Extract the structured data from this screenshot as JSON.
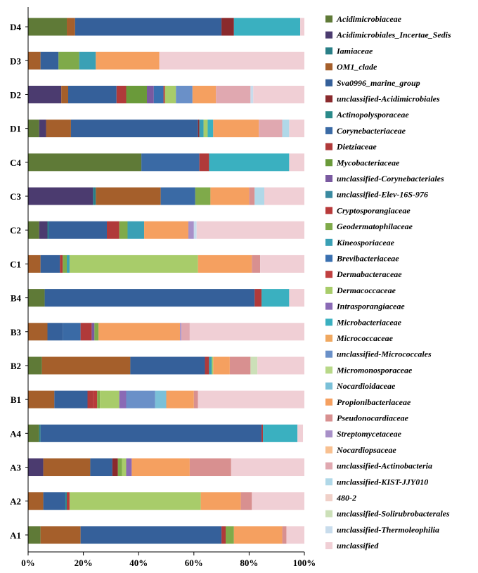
{
  "chart_data": {
    "type": "bar",
    "orientation": "horizontal",
    "stacked": true,
    "percent": true,
    "title": "",
    "xlabel": "",
    "ylabel": "",
    "xlim": [
      0,
      100
    ],
    "xticks": [
      "0%",
      "20%",
      "40%",
      "60%",
      "80%",
      "100%"
    ],
    "legend_position": "right",
    "categories": [
      "D4",
      "D3",
      "D2",
      "D1",
      "C4",
      "C3",
      "C2",
      "C1",
      "B4",
      "B3",
      "B2",
      "B1",
      "A4",
      "A3",
      "A2",
      "A1"
    ],
    "series": [
      {
        "name": "Acidimicrobiaceae",
        "color": "#5f7a37",
        "values": [
          14.0,
          0,
          0,
          4.0,
          41.0,
          0,
          4.0,
          0,
          6.0,
          0,
          5.0,
          0,
          4.0,
          0,
          0,
          4.5
        ]
      },
      {
        "name": "Acidimicrobiales_Incertae_Sedis",
        "color": "#4b3b6f",
        "values": [
          0,
          0,
          12.0,
          2.5,
          0,
          23.5,
          3.0,
          0,
          0,
          0,
          0,
          0,
          0,
          5.5,
          0,
          0
        ]
      },
      {
        "name": "Iamiaceae",
        "color": "#2a7f87",
        "values": [
          0,
          0,
          0,
          0,
          0,
          1.0,
          0.5,
          0,
          0,
          0,
          0,
          0,
          0.5,
          0,
          0,
          0
        ]
      },
      {
        "name": "OM1_clade",
        "color": "#a55f2b",
        "values": [
          3.0,
          4.5,
          2.5,
          9.0,
          0,
          23.5,
          0,
          4.5,
          0,
          7.0,
          32.0,
          9.5,
          0,
          17.0,
          5.5,
          14.5
        ]
      },
      {
        "name": "Sva0996_marine_group",
        "color": "#35609a",
        "values": [
          53.0,
          6.5,
          17.5,
          46.0,
          0,
          0,
          21.0,
          7.0,
          76.0,
          5.5,
          27.0,
          12.0,
          80.0,
          8.0,
          8.0,
          51.0
        ]
      },
      {
        "name": "unclassified-Acidimicrobiales",
        "color": "#8a2a2d",
        "values": [
          4.5,
          0,
          0,
          0.5,
          0,
          0,
          0,
          0,
          0,
          0,
          0,
          0,
          0,
          2.0,
          0,
          0
        ]
      },
      {
        "name": "Actinopolysporaceae",
        "color": "#2a8a8a",
        "values": [
          0,
          0,
          0,
          0,
          0,
          0,
          0,
          0,
          0,
          0,
          0,
          0,
          0,
          0,
          0.5,
          0
        ]
      },
      {
        "name": "Corynebacteriaceae",
        "color": "#3a6aa5",
        "values": [
          0,
          0,
          0,
          0,
          21.0,
          12.5,
          0,
          0,
          0,
          6.5,
          0,
          0,
          0,
          0,
          0,
          0
        ]
      },
      {
        "name": "Dietziaceae",
        "color": "#b03a3a",
        "values": [
          0,
          0,
          3.5,
          0,
          3.5,
          0,
          4.5,
          1.0,
          2.5,
          4.0,
          1.5,
          2.0,
          0.5,
          0,
          0.5,
          1.5
        ]
      },
      {
        "name": "Mycobacteriaceae",
        "color": "#6a9a3a",
        "values": [
          0,
          0,
          7.5,
          0,
          0,
          0,
          0,
          0,
          0,
          0,
          0,
          0,
          0,
          0,
          0,
          0
        ]
      },
      {
        "name": "unclassified-Corynebacteriales",
        "color": "#7a5aa0",
        "values": [
          0,
          0,
          2.5,
          0,
          0,
          0,
          0,
          0,
          0,
          1.0,
          0,
          0,
          0,
          0,
          0,
          0
        ]
      },
      {
        "name": "unclassified-Elev-16S-976",
        "color": "#3a8aa0",
        "values": [
          0,
          0,
          0,
          0,
          0,
          0,
          0,
          0,
          0,
          0,
          0,
          0,
          0,
          0,
          0,
          0
        ]
      },
      {
        "name": "Cryptosporangiaceae",
        "color": "#b83a3a",
        "values": [
          0,
          0,
          0,
          0,
          0,
          0,
          0,
          0,
          0,
          0,
          0,
          1.5,
          0,
          0,
          0.5,
          0
        ]
      },
      {
        "name": "Geodermatophilaceae",
        "color": "#7faa4a",
        "values": [
          0,
          7.5,
          0,
          0,
          0,
          5.5,
          3.0,
          1.5,
          0,
          1.5,
          0,
          1.0,
          0,
          1.5,
          0,
          3.0
        ]
      },
      {
        "name": "Kineosporiaceae",
        "color": "#3aa0b5",
        "values": [
          0,
          6.0,
          0,
          1.5,
          0,
          0,
          6.0,
          1.0,
          0,
          0,
          1.0,
          0,
          0,
          0,
          0,
          0
        ]
      },
      {
        "name": "Brevibacteriaceae",
        "color": "#3a70b0",
        "values": [
          0,
          0,
          3.5,
          0,
          0,
          0,
          0,
          0,
          0,
          0,
          0,
          0,
          0,
          0,
          0,
          0
        ]
      },
      {
        "name": "Dermabacteraceae",
        "color": "#c04040",
        "values": [
          0,
          0,
          0.5,
          0,
          0,
          0,
          0,
          0,
          0,
          0,
          0,
          0,
          0,
          0,
          0,
          0
        ]
      },
      {
        "name": "Dermacoccaceae",
        "color": "#a8cc6a",
        "values": [
          0,
          0,
          4.0,
          1.5,
          0,
          0,
          0,
          46.5,
          0,
          0,
          0.5,
          7.0,
          0,
          1.5,
          47.5,
          0
        ]
      },
      {
        "name": "Intrasporangiaceae",
        "color": "#8a6ab5",
        "values": [
          0,
          0,
          0,
          0,
          0,
          0,
          0,
          0,
          0,
          0,
          0,
          2.5,
          0,
          2.0,
          0,
          0
        ]
      },
      {
        "name": "Microbacteriaceae",
        "color": "#3ab0c0",
        "values": [
          24.0,
          0,
          0,
          2.0,
          29.0,
          0,
          0,
          0,
          10.0,
          0,
          0,
          0,
          12.5,
          0,
          0,
          0
        ]
      },
      {
        "name": "Micrococcaceae",
        "color": "#f0a860",
        "values": [
          0,
          0,
          0,
          0,
          0,
          0,
          0,
          0,
          0,
          0,
          0,
          0,
          0,
          0,
          0,
          0
        ]
      },
      {
        "name": "unclassified-Micrococcales",
        "color": "#6a90c8",
        "values": [
          0,
          0,
          6.0,
          0,
          0,
          0,
          0,
          0,
          0,
          0,
          0,
          10.5,
          0,
          0,
          0,
          0
        ]
      },
      {
        "name": "Micromonosporaceae",
        "color": "#b8d888",
        "values": [
          0,
          0,
          0,
          0,
          0,
          0,
          0,
          0,
          0,
          0,
          0,
          0,
          0,
          0,
          0,
          0
        ]
      },
      {
        "name": "Nocardioidaceae",
        "color": "#7ac0d8",
        "values": [
          0,
          0,
          0,
          0,
          0,
          0,
          0,
          0,
          0,
          0,
          0,
          4.0,
          0,
          0,
          0,
          0
        ]
      },
      {
        "name": "Propionibacteriaceae",
        "color": "#f5a060",
        "values": [
          0,
          23.0,
          8.5,
          16.5,
          0,
          14.0,
          16.0,
          19.5,
          0,
          29.5,
          6.0,
          10.0,
          0,
          21.0,
          14.5,
          17.5
        ]
      },
      {
        "name": "Pseudonocardiaceae",
        "color": "#d89090",
        "values": [
          0,
          0,
          0,
          0,
          0,
          2.0,
          0,
          3.0,
          0,
          0,
          7.5,
          1.5,
          0,
          15.0,
          4.0,
          1.5
        ]
      },
      {
        "name": "Streptomycetaceae",
        "color": "#a890c8",
        "values": [
          0,
          0,
          0,
          0,
          0,
          0,
          2.0,
          0,
          0,
          0.5,
          0,
          0,
          0,
          0,
          0,
          0
        ]
      },
      {
        "name": "Nocardiopsaceae",
        "color": "#f8c090",
        "values": [
          0,
          0,
          0,
          0,
          0,
          0,
          0,
          0,
          0,
          0,
          0,
          0,
          0,
          0,
          0,
          0
        ]
      },
      {
        "name": "unclassified-Actinobacteria",
        "color": "#e0a8b0",
        "values": [
          0,
          0,
          12.5,
          8.5,
          0,
          0,
          0,
          0,
          0,
          3.0,
          0,
          0,
          0,
          0,
          0,
          0
        ]
      },
      {
        "name": "unclassified-KIST-JJY010",
        "color": "#b0d8e8",
        "values": [
          0,
          0,
          0,
          2.5,
          0,
          3.5,
          0,
          0,
          0,
          0,
          0,
          0,
          0,
          0,
          0,
          0
        ]
      },
      {
        "name": "480-2",
        "color": "#f0d0c8",
        "values": [
          0,
          0,
          0,
          0,
          0,
          0,
          0,
          0,
          0,
          0,
          0,
          0,
          0,
          0,
          0,
          0
        ]
      },
      {
        "name": "unclassified-Solirubrobacterales",
        "color": "#cce0b8",
        "values": [
          0,
          0,
          0,
          0,
          0,
          0,
          0,
          0,
          0,
          0,
          2.5,
          0,
          0,
          0,
          0,
          0
        ]
      },
      {
        "name": "unclassified-Thermoleophilia",
        "color": "#c8dcec",
        "values": [
          0,
          0,
          1.0,
          0,
          0,
          0,
          1.0,
          0,
          0,
          0,
          0,
          0,
          0,
          0,
          0,
          0
        ]
      },
      {
        "name": "unclassified",
        "color": "#f0cfd5",
        "values": [
          1.5,
          52.5,
          21.0,
          5.5,
          5.5,
          14.5,
          39.0,
          16.0,
          5.5,
          41.5,
          17.0,
          38.5,
          2.0,
          26.5,
          19.0,
          6.5
        ]
      }
    ]
  }
}
